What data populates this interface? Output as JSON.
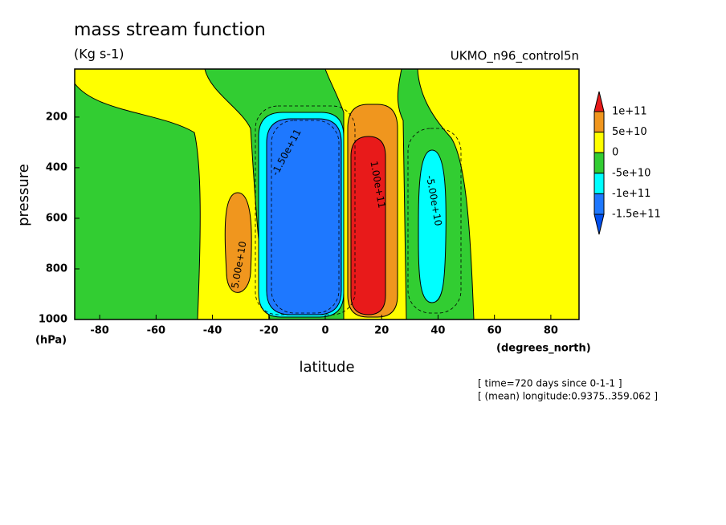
{
  "chart_data": {
    "type": "contour",
    "title": "mass stream function",
    "subtitle": "(Kg s-1)",
    "dataset": "UKMO_n96_control5n",
    "x_label": "latitude",
    "x_unit": "(degrees_north)",
    "y_label": "pressure",
    "y_unit": "(hPa)",
    "notes": [
      "[ time=720 days since 0-1-1 ]",
      "[ (mean) longitude:0.9375..359.062 ]"
    ],
    "xlim": [
      -90,
      90
    ],
    "xticks": [
      -80,
      -60,
      -40,
      -20,
      0,
      20,
      40,
      60,
      80
    ],
    "ylim": [
      1000,
      10
    ],
    "yticks": [
      200,
      400,
      600,
      800,
      1000
    ],
    "colorbar": {
      "levels": [
        {
          "value": 100000000000,
          "label": "1e+11"
        },
        {
          "value": 50000000000,
          "label": "5e+10"
        },
        0,
        {
          "value": -50000000000,
          "label": "-5e+10"
        },
        {
          "value": -100000000000,
          "label": "-1e+11"
        },
        {
          "value": -150000000000,
          "label": "-1.5e+11"
        }
      ],
      "colors": [
        "#e81a1a",
        "#f0961e",
        "#ffff00",
        "#32cd32",
        "#00ffff",
        "#1e78ff",
        "#0050f0"
      ]
    },
    "contour_labels": [
      {
        "value": 50000000000,
        "label": "5.00e+10"
      },
      {
        "value": 100000000000,
        "label": "1.00e+11"
      },
      {
        "value": -50000000000,
        "label": "-5.00e+10"
      },
      {
        "value": -150000000000,
        "label": "-1.50e+11"
      }
    ]
  }
}
